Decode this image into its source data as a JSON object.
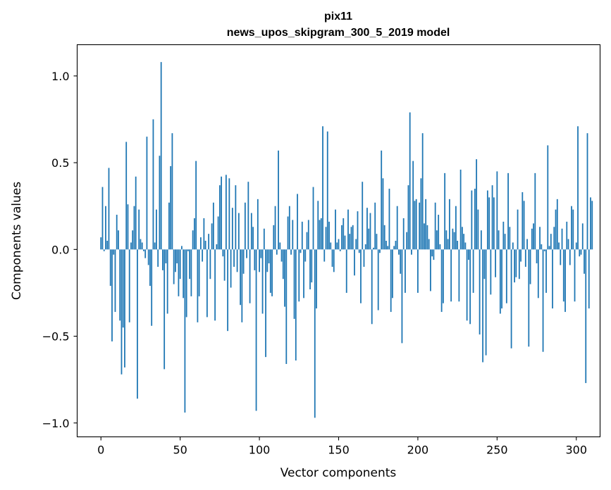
{
  "chart_data": {
    "type": "bar",
    "title_line1": "pix11",
    "title_line2": "news_upos_skipgram_300_5_2019 model",
    "xlabel": "Vector components",
    "ylabel": "Components values",
    "xlim": [
      -15,
      315
    ],
    "ylim": [
      -1.08,
      1.18
    ],
    "xticks": [
      0,
      50,
      100,
      150,
      200,
      250,
      300
    ],
    "xtick_labels": [
      "0",
      "50",
      "100",
      "150",
      "200",
      "250",
      "300"
    ],
    "yticks": [
      -1.0,
      -0.5,
      0.0,
      0.5,
      1.0
    ],
    "ytick_labels": [
      "−1.0",
      "−0.5",
      "0.0",
      "0.5",
      "1.0"
    ],
    "bar_color": "#1f77b4",
    "values": [
      0.07,
      0.36,
      -0.01,
      0.25,
      0.05,
      0.47,
      -0.21,
      -0.53,
      -0.03,
      -0.36,
      0.2,
      0.11,
      -0.41,
      -0.72,
      -0.45,
      -0.68,
      0.62,
      0.26,
      -0.42,
      0.04,
      0.11,
      0.25,
      0.42,
      -0.86,
      0.23,
      0.06,
      0.04,
      -0.01,
      -0.05,
      0.65,
      -0.09,
      -0.21,
      -0.44,
      0.75,
      0.04,
      0.23,
      -0.1,
      0.54,
      1.08,
      -0.12,
      -0.69,
      -0.08,
      -0.37,
      0.27,
      0.48,
      0.67,
      -0.2,
      -0.13,
      -0.08,
      -0.27,
      -0.17,
      0.02,
      -0.28,
      -0.94,
      -0.39,
      -0.01,
      -0.17,
      -0.27,
      0.11,
      0.18,
      0.51,
      -0.42,
      -0.27,
      0.07,
      -0.07,
      0.18,
      0.05,
      -0.39,
      0.09,
      -0.17,
      0.15,
      0.27,
      -0.41,
      0.03,
      0.19,
      0.37,
      0.42,
      -0.04,
      -0.18,
      0.43,
      -0.47,
      0.41,
      -0.22,
      0.24,
      -0.1,
      0.37,
      -0.13,
      0.21,
      -0.32,
      -0.42,
      -0.14,
      0.27,
      -0.05,
      0.39,
      -0.31,
      0.21,
      0.13,
      -0.12,
      -0.93,
      0.29,
      -0.13,
      -0.05,
      -0.37,
      0.12,
      -0.62,
      -0.13,
      -0.08,
      -0.25,
      -0.27,
      0.14,
      0.25,
      -0.03,
      0.57,
      0.04,
      -0.07,
      -0.17,
      -0.33,
      -0.66,
      0.19,
      0.25,
      -0.03,
      0.17,
      -0.4,
      -0.64,
      0.32,
      -0.3,
      -0.02,
      0.16,
      -0.28,
      -0.07,
      0.1,
      0.17,
      -0.23,
      -0.19,
      0.36,
      -0.97,
      -0.34,
      0.28,
      0.17,
      0.18,
      0.71,
      -0.07,
      0.13,
      0.68,
      0.16,
      0.04,
      -0.1,
      -0.13,
      0.23,
      0.04,
      0.06,
      -0.01,
      0.14,
      0.18,
      0.08,
      -0.25,
      0.23,
      0.09,
      0.13,
      0.14,
      -0.15,
      0.06,
      0.22,
      -0.02,
      -0.31,
      0.39,
      -0.1,
      0.03,
      0.24,
      0.12,
      0.21,
      -0.43,
      0.01,
      0.27,
      0.09,
      -0.35,
      -0.02,
      0.57,
      0.41,
      0.14,
      0.05,
      0.02,
      0.35,
      -0.36,
      -0.28,
      0.02,
      0.05,
      0.25,
      -0.03,
      -0.14,
      -0.54,
      0.18,
      -0.25,
      0.1,
      0.37,
      0.79,
      -0.03,
      0.51,
      0.28,
      0.29,
      -0.25,
      0.27,
      0.41,
      0.67,
      0.15,
      0.29,
      0.14,
      0.06,
      -0.24,
      -0.04,
      -0.06,
      0.27,
      0.11,
      0.2,
      0.03,
      -0.36,
      -0.31,
      0.44,
      0.11,
      0.06,
      0.29,
      -0.3,
      0.12,
      0.1,
      0.25,
      0.05,
      -0.3,
      0.46,
      0.13,
      0.09,
      0.04,
      -0.41,
      -0.06,
      -0.43,
      0.34,
      -0.25,
      0.35,
      0.52,
      0.23,
      -0.49,
      0.11,
      -0.65,
      -0.17,
      -0.61,
      0.34,
      0.3,
      -0.26,
      0.37,
      0.3,
      -0.16,
      0.45,
      0.11,
      -0.37,
      -0.34,
      0.16,
      0.09,
      -0.31,
      0.44,
      0.13,
      -0.57,
      0.04,
      -0.19,
      -0.16,
      0.23,
      -0.17,
      -0.07,
      0.33,
      0.28,
      -0.1,
      0.06,
      -0.56,
      -0.2,
      0.12,
      0.15,
      0.44,
      -0.08,
      -0.28,
      0.13,
      0.03,
      -0.59,
      -0.01,
      -0.25,
      0.6,
      0.02,
      0.09,
      -0.34,
      0.13,
      0.23,
      0.29,
      0.04,
      -0.09,
      0.12,
      -0.3,
      -0.36,
      0.16,
      0.06,
      -0.09,
      0.25,
      0.23,
      -0.3,
      0.04,
      0.71,
      -0.04,
      -0.03,
      0.15,
      -0.14,
      -0.77,
      0.67,
      -0.34,
      0.3,
      0.28
    ]
  }
}
